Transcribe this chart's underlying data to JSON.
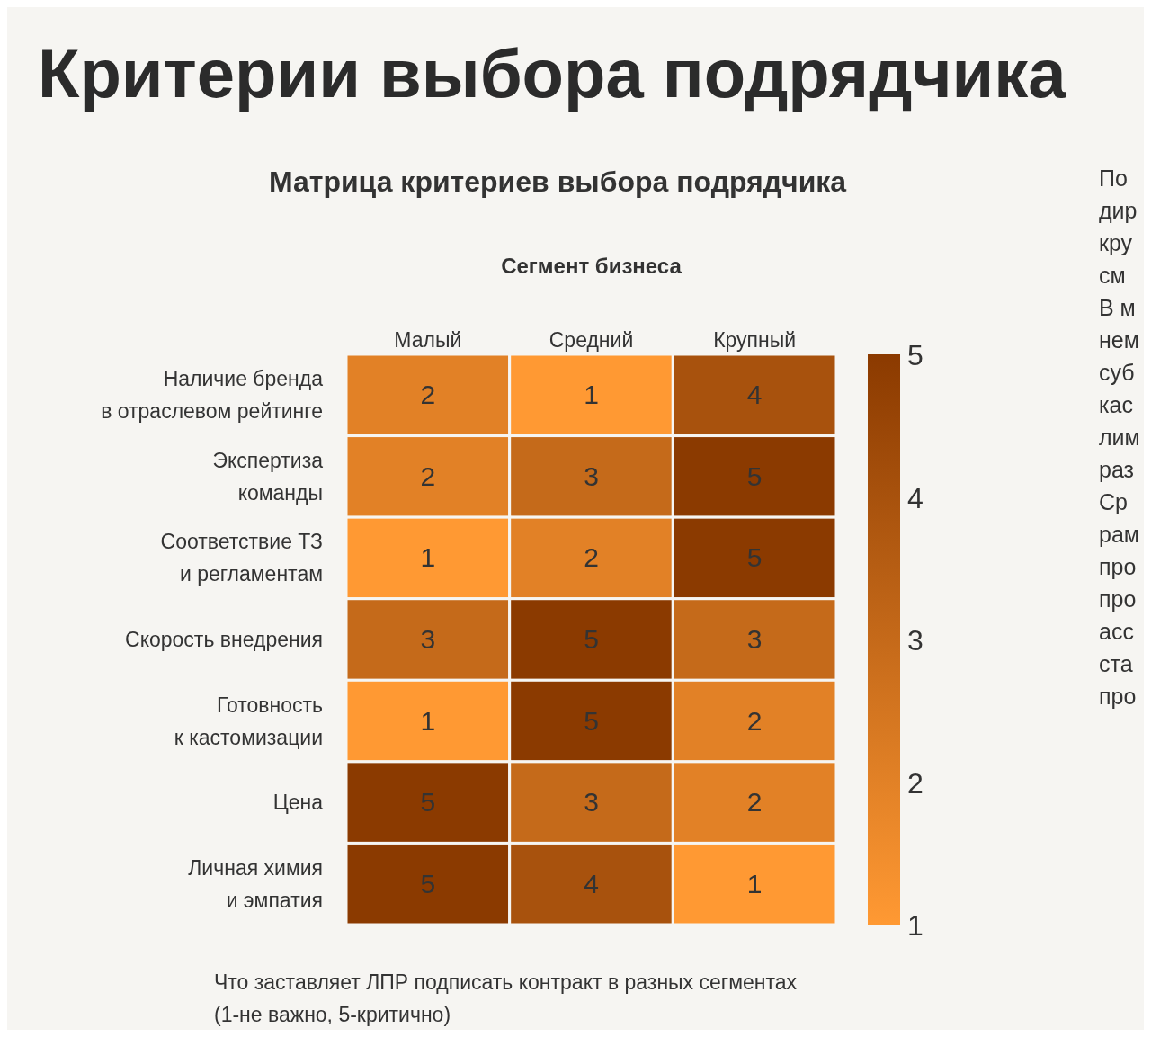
{
  "chart_data": {
    "type": "heatmap",
    "title": "Критерии выбора подрядчика",
    "subtitle": "Матрица критериев выбора подрядчика",
    "xlabel": "Сегмент бизнеса",
    "categories": [
      "Малый",
      "Средний",
      "Крупный"
    ],
    "y_categories": [
      "Наличие бренда\nв отраслевом рейтинге",
      "Экспертиза\nкоманды",
      "Соответствие ТЗ\nи регламентам",
      "Скорость внедрения",
      "Готовность\nк кастомизации",
      "Цена",
      "Личная химия\nи эмпатия"
    ],
    "cells": [
      [
        2,
        1,
        4
      ],
      [
        2,
        3,
        5
      ],
      [
        1,
        2,
        5
      ],
      [
        3,
        5,
        3
      ],
      [
        1,
        5,
        2
      ],
      [
        5,
        3,
        2
      ],
      [
        5,
        4,
        1
      ]
    ],
    "data_labels": true,
    "clim": [
      1,
      5
    ],
    "cticks": [
      1,
      2,
      3,
      4,
      5
    ],
    "annotations": [
      "Что заставляет ЛПР подписать контракт в разных сегментах\n(1-не важно, 5-критично)",
      "По",
      "дир",
      "кру",
      "см",
      "В м",
      "нем",
      "суб",
      "кас",
      "лим",
      "раз",
      "Ср",
      "рам",
      "про",
      "про",
      "асс",
      "ста",
      "про"
    ]
  }
}
